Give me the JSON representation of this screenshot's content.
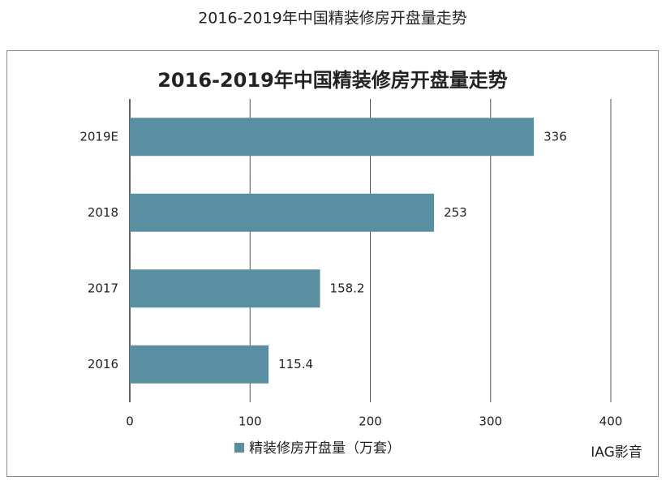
{
  "page_title": "2016-2019年中国精装修房开盘量走势",
  "chart_data": {
    "type": "bar",
    "orientation": "horizontal",
    "title": "2016-2019年中国精装修房开盘量走势",
    "categories": [
      "2019E",
      "2018",
      "2017",
      "2016"
    ],
    "series": [
      {
        "name": "精装修房开盘量（万套）",
        "color": "#5a8fa2",
        "values": [
          336,
          253,
          158.2,
          115.4
        ]
      }
    ],
    "xlim": [
      0,
      400
    ],
    "xticks": [
      0,
      100,
      200,
      300,
      400
    ],
    "grid": true,
    "legend": "bottom"
  },
  "watermark": "IAG影音"
}
